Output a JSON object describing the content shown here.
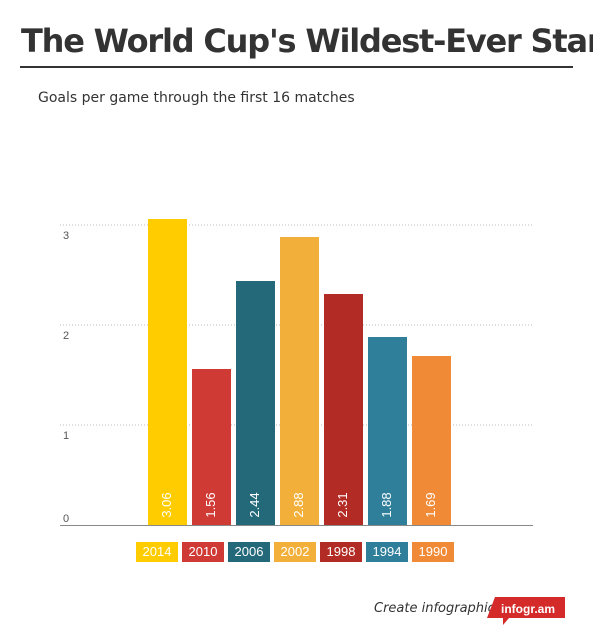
{
  "header": {
    "title": "The World Cup's Wildest-Ever Start",
    "subtitle": "Goals per game through the first 16 matches"
  },
  "chart_data": {
    "type": "bar",
    "categories": [
      "2014",
      "2010",
      "2006",
      "2002",
      "1998",
      "1994",
      "1990"
    ],
    "values": [
      3.06,
      1.56,
      2.44,
      2.88,
      2.31,
      1.88,
      1.69
    ],
    "value_labels": [
      "3.06",
      "1.56",
      "2.44",
      "2.88",
      "2.31",
      "1.88",
      "1.69"
    ],
    "colors": [
      "#FFCC00",
      "#D03A35",
      "#24697A",
      "#F2B03A",
      "#B22B24",
      "#2F7E9A",
      "#F08A36"
    ],
    "yticks": [
      "0",
      "1",
      "2",
      "3"
    ],
    "ylim": [
      0,
      3
    ],
    "grid": true,
    "legend": "bottom",
    "title": "The World Cup's Wildest-Ever Start",
    "subtitle": "Goals per game through the first 16 matches"
  },
  "footer": {
    "link_text": "Create infographics",
    "badge_text": "infogr.am",
    "badge_color": "#D52A2A"
  }
}
